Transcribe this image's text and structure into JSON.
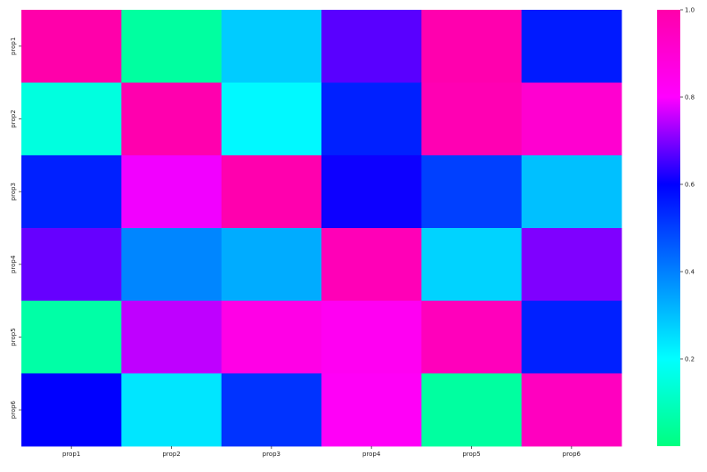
{
  "chart_data": {
    "type": "heatmap",
    "title": "",
    "xlabel": "",
    "ylabel": "",
    "x_categories": [
      "prop1",
      "prop2",
      "prop3",
      "prop4",
      "prop5",
      "prop6"
    ],
    "y_categories": [
      "prop1",
      "prop2",
      "prop3",
      "prop4",
      "prop5",
      "prop6"
    ],
    "values": [
      [
        1.0,
        0.05,
        0.28,
        0.67,
        0.99,
        0.56
      ],
      [
        0.15,
        0.99,
        0.21,
        0.55,
        0.98,
        0.91
      ],
      [
        0.55,
        0.79,
        0.99,
        0.61,
        0.5,
        0.3
      ],
      [
        0.68,
        0.39,
        0.33,
        0.97,
        0.27,
        0.7
      ],
      [
        0.06,
        0.75,
        0.86,
        0.83,
        0.96,
        0.55
      ],
      [
        0.6,
        0.24,
        0.52,
        0.82,
        0.05,
        0.95
      ]
    ],
    "colormap": "gist_rainbow-like (green, cyan, blue, magenta, pink)",
    "colorbar": {
      "range": [
        0.0,
        1.0
      ],
      "ticks": [
        0.2,
        0.4,
        0.6,
        0.8,
        1.0
      ],
      "tick_labels": [
        "0.2",
        "0.4",
        "0.6",
        "0.8",
        "1.0"
      ],
      "placement": "right"
    },
    "grid": false
  }
}
